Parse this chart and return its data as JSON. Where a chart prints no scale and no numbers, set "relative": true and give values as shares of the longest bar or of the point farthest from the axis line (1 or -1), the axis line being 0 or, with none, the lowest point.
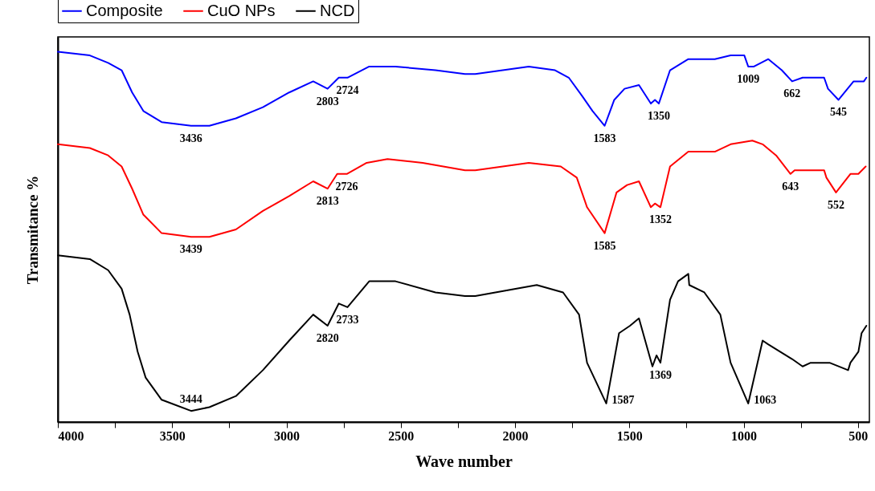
{
  "chart_data": {
    "type": "line",
    "relative": true,
    "xlabel": "Wave number",
    "ylabel": "Transmitance %",
    "xlim": [
      4000,
      450
    ],
    "xticks": [
      4000,
      {
        "value": 3750,
        "label": null
      },
      3500,
      {
        "value": 3250,
        "label": null
      },
      3000,
      {
        "value": 2750,
        "label": null
      },
      2500,
      {
        "value": 2250,
        "label": null
      },
      2000,
      {
        "value": 1750,
        "label": null
      },
      1500,
      {
        "value": 1250,
        "label": null
      },
      1000,
      {
        "value": 750,
        "label": null
      },
      500
    ],
    "legend": "top",
    "grid": false,
    "marker": "none",
    "line_style": "solid",
    "series": [
      {
        "name": "Composite",
        "color": "#0000ff",
        "x": [
          4000,
          3860,
          3780,
          3721,
          3675,
          3626,
          3546,
          3417,
          3337,
          3221,
          3103,
          2988,
          2883,
          2820,
          2771,
          2733,
          2638,
          2523,
          2348,
          2219,
          2174,
          1940,
          1825,
          1765,
          1706,
          1661,
          1608,
          1566,
          1521,
          1458,
          1406,
          1388,
          1371,
          1322,
          1242,
          1126,
          1057,
          997,
          980,
          955,
          892,
          833,
          788,
          742,
          648,
          631,
          585,
          519,
          474,
          463
        ],
        "values": [
          1.0,
          0.99,
          0.97,
          0.95,
          0.89,
          0.84,
          0.81,
          0.8,
          0.8,
          0.82,
          0.85,
          0.89,
          0.92,
          0.9,
          0.93,
          0.93,
          0.96,
          0.96,
          0.95,
          0.94,
          0.94,
          0.96,
          0.95,
          0.93,
          0.88,
          0.84,
          0.8,
          0.87,
          0.9,
          0.91,
          0.86,
          0.87,
          0.86,
          0.95,
          0.98,
          0.98,
          0.99,
          0.99,
          0.96,
          0.96,
          0.98,
          0.95,
          0.92,
          0.93,
          0.93,
          0.9,
          0.87,
          0.92,
          0.92,
          0.93
        ]
      },
      {
        "name": "CuO NPs",
        "color": "#ff0000",
        "x": [
          4000,
          3860,
          3780,
          3721,
          3675,
          3626,
          3546,
          3417,
          3337,
          3221,
          3103,
          2988,
          2883,
          2820,
          2778,
          2736,
          2649,
          2558,
          2404,
          2219,
          2174,
          1940,
          1800,
          1730,
          1685,
          1608,
          1556,
          1510,
          1458,
          1406,
          1388,
          1364,
          1322,
          1242,
          1126,
          1057,
          962,
          917,
          858,
          795,
          777,
          648,
          638,
          596,
          533,
          498,
          466
        ],
        "values": [
          0.75,
          0.74,
          0.72,
          0.69,
          0.63,
          0.56,
          0.51,
          0.5,
          0.5,
          0.52,
          0.57,
          0.61,
          0.65,
          0.63,
          0.67,
          0.67,
          0.7,
          0.71,
          0.7,
          0.68,
          0.68,
          0.7,
          0.69,
          0.66,
          0.58,
          0.51,
          0.62,
          0.64,
          0.65,
          0.58,
          0.59,
          0.58,
          0.69,
          0.73,
          0.73,
          0.75,
          0.76,
          0.75,
          0.72,
          0.67,
          0.68,
          0.68,
          0.66,
          0.62,
          0.67,
          0.67,
          0.69
        ]
      },
      {
        "name": "NCD",
        "color": "#000000",
        "x": [
          4000,
          3860,
          3780,
          3721,
          3686,
          3651,
          3616,
          3546,
          3417,
          3337,
          3221,
          3103,
          2988,
          2883,
          2820,
          2771,
          2733,
          2638,
          2523,
          2348,
          2219,
          2174,
          1905,
          1790,
          1720,
          1685,
          1601,
          1545,
          1497,
          1458,
          1399,
          1381,
          1364,
          1322,
          1287,
          1242,
          1238,
          1172,
          1102,
          1057,
          980,
          917,
          893,
          788,
          742,
          707,
          624,
          543,
          533,
          498,
          484,
          463
        ],
        "values": [
          0.45,
          0.44,
          0.41,
          0.36,
          0.29,
          0.19,
          0.12,
          0.06,
          0.03,
          0.04,
          0.07,
          0.14,
          0.22,
          0.29,
          0.26,
          0.32,
          0.31,
          0.38,
          0.38,
          0.35,
          0.34,
          0.34,
          0.37,
          0.35,
          0.29,
          0.16,
          0.05,
          0.24,
          0.26,
          0.28,
          0.15,
          0.18,
          0.16,
          0.33,
          0.38,
          0.4,
          0.37,
          0.35,
          0.29,
          0.16,
          0.05,
          0.22,
          0.21,
          0.17,
          0.15,
          0.16,
          0.16,
          0.14,
          0.16,
          0.19,
          0.24,
          0.26
        ]
      }
    ],
    "annotations": [
      {
        "text": "3436",
        "x": 3417,
        "y": 0.8
      },
      {
        "text": "2803",
        "x": 2820,
        "y": 0.9
      },
      {
        "text": "2724",
        "x": 2733,
        "y": 0.93
      },
      {
        "text": "1583",
        "x": 1608,
        "y": 0.8
      },
      {
        "text": "1350",
        "x": 1371,
        "y": 0.86
      },
      {
        "text": "1009",
        "x": 980,
        "y": 0.96
      },
      {
        "text": "662",
        "x": 788,
        "y": 0.92
      },
      {
        "text": "545",
        "x": 585,
        "y": 0.87
      },
      {
        "text": "3439",
        "x": 3417,
        "y": 0.5
      },
      {
        "text": "2813",
        "x": 2820,
        "y": 0.63
      },
      {
        "text": "2726",
        "x": 2736,
        "y": 0.67
      },
      {
        "text": "1585",
        "x": 1608,
        "y": 0.51
      },
      {
        "text": "1352",
        "x": 1364,
        "y": 0.58
      },
      {
        "text": "643",
        "x": 795,
        "y": 0.67
      },
      {
        "text": "552",
        "x": 596,
        "y": 0.62
      },
      {
        "text": "3444",
        "x": 3417,
        "y": 0.03
      },
      {
        "text": "2820",
        "x": 2820,
        "y": 0.26
      },
      {
        "text": "2733",
        "x": 2733,
        "y": 0.31
      },
      {
        "text": "1587",
        "x": 1601,
        "y": 0.05
      },
      {
        "text": "1369",
        "x": 1364,
        "y": 0.16
      },
      {
        "text": "1063",
        "x": 980,
        "y": 0.05
      }
    ]
  }
}
